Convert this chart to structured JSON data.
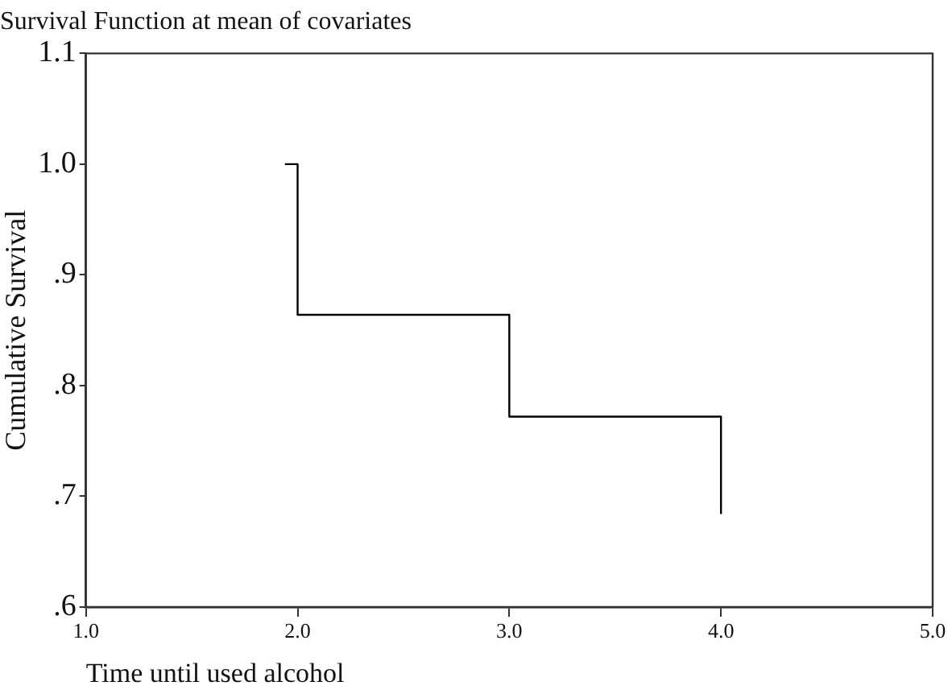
{
  "chart_data": {
    "type": "step",
    "title": "Survival Function at mean of covariates",
    "xlabel": "Time until used alcohol",
    "ylabel": "Cumulative Survival",
    "x": [
      1.94,
      2,
      3,
      4
    ],
    "values": [
      1.0,
      0.864,
      0.772,
      0.684
    ],
    "color": "#000000",
    "xlim": [
      1,
      5
    ],
    "xticks": [
      {
        "value": 1,
        "label": "1.0"
      },
      {
        "value": 2,
        "label": "2.0"
      },
      {
        "value": 3,
        "label": "3.0"
      },
      {
        "value": 4,
        "label": "4.0"
      },
      {
        "value": 5,
        "label": "5.0"
      }
    ],
    "ylim": [
      0.6,
      1.1
    ],
    "yticks": [
      {
        "value": 0.6,
        "label": ".6"
      },
      {
        "value": 0.7,
        "label": ".7"
      },
      {
        "value": 0.8,
        "label": ".8"
      },
      {
        "value": 0.9,
        "label": ".9"
      },
      {
        "value": 1.0,
        "label": "1.0"
      },
      {
        "value": 1.1,
        "label": "1.1"
      }
    ],
    "grid": false,
    "legend": false,
    "marker": "none",
    "line_style": "solid"
  }
}
